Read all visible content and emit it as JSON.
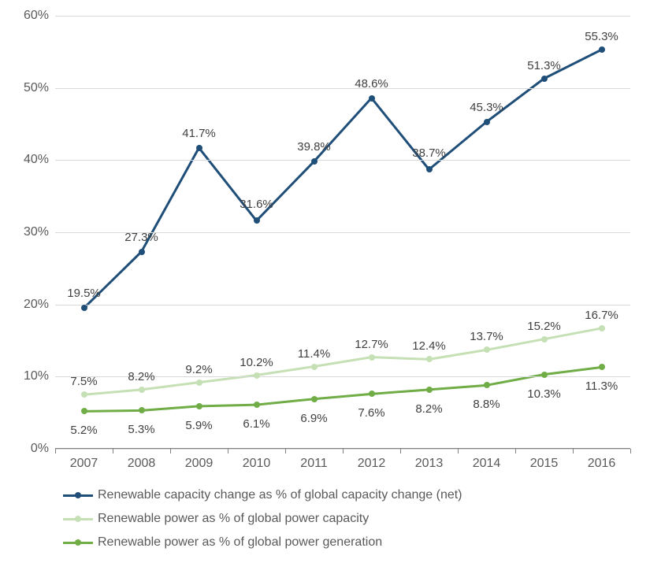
{
  "chart": {
    "type": "line",
    "background_color": "#ffffff",
    "grid_color": "#d9d9d9",
    "axis_color": "#808080",
    "tick_label_color": "#595959",
    "point_label_color": "#404040",
    "font_family": "Arial",
    "tick_fontsize": 16,
    "point_label_fontsize": 15,
    "legend_fontsize": 16,
    "line_width": 3,
    "marker_size": 8,
    "ylim": [
      0,
      60
    ],
    "ytick_step": 10,
    "y_ticks": [
      {
        "v": 0,
        "label": "0%"
      },
      {
        "v": 10,
        "label": "10%"
      },
      {
        "v": 20,
        "label": "20%"
      },
      {
        "v": 30,
        "label": "30%"
      },
      {
        "v": 40,
        "label": "40%"
      },
      {
        "v": 50,
        "label": "50%"
      },
      {
        "v": 60,
        "label": "60%"
      }
    ],
    "categories": [
      "2007",
      "2008",
      "2009",
      "2010",
      "2011",
      "2012",
      "2013",
      "2014",
      "2015",
      "2016"
    ],
    "series": [
      {
        "id": "capacity_change",
        "name": "Renewable capacity change as % of global capacity change (net)",
        "color": "#1f4e79",
        "values": [
          19.5,
          27.3,
          41.7,
          31.6,
          39.8,
          48.6,
          38.7,
          45.3,
          51.3,
          55.3
        ],
        "labels": [
          "19.5%",
          "27.3%",
          "41.7%",
          "31.6%",
          "39.8%",
          "48.6%",
          "38.7%",
          "45.3%",
          "51.3%",
          "55.3%"
        ],
        "label_dy": [
          -10,
          -10,
          -10,
          -12,
          -10,
          -10,
          -12,
          -10,
          -8,
          -8
        ]
      },
      {
        "id": "power_capacity",
        "name": "Renewable power as % of global power capacity",
        "color": "#c5e0b4",
        "values": [
          7.5,
          8.2,
          9.2,
          10.2,
          11.4,
          12.7,
          12.4,
          13.7,
          15.2,
          16.7
        ],
        "labels": [
          "7.5%",
          "8.2%",
          "9.2%",
          "10.2%",
          "11.4%",
          "12.7%",
          "12.4%",
          "13.7%",
          "15.2%",
          "16.7%"
        ],
        "label_dy": [
          -8,
          -8,
          -8,
          -8,
          -8,
          -8,
          -8,
          -8,
          -8,
          -8
        ]
      },
      {
        "id": "power_generation",
        "name": "Renewable power as % of global power generation",
        "color": "#70ad47",
        "values": [
          5.2,
          5.3,
          5.9,
          6.1,
          6.9,
          7.6,
          8.2,
          8.8,
          10.3,
          11.3
        ],
        "labels": [
          "5.2%",
          "5.3%",
          "5.9%",
          "6.1%",
          "6.9%",
          "7.6%",
          "8.2%",
          "8.8%",
          "10.3%",
          "11.3%"
        ],
        "label_dy": [
          16,
          16,
          16,
          16,
          16,
          16,
          16,
          16,
          16,
          16
        ]
      }
    ]
  }
}
